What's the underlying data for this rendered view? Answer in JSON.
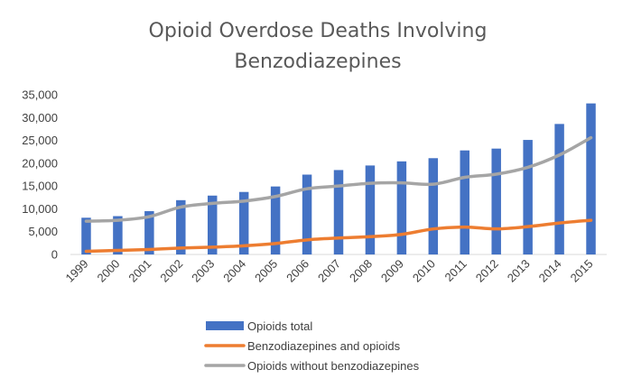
{
  "chart_data": {
    "type": "bar",
    "title": "Opioid Overdose Deaths Involving",
    "subtitle": "Benzodiazepines",
    "xlabel": "",
    "ylabel": "",
    "ylim": [
      0,
      35000
    ],
    "yticks": [
      0,
      5000,
      10000,
      15000,
      20000,
      25000,
      30000,
      35000
    ],
    "ytick_labels": [
      "0",
      "5,000",
      "10,000",
      "15,000",
      "20,000",
      "25,000",
      "30,000",
      "35,000"
    ],
    "grid": false,
    "legend_position": "bottom",
    "categories": [
      "1999",
      "2000",
      "2001",
      "2002",
      "2003",
      "2004",
      "2005",
      "2006",
      "2007",
      "2008",
      "2009",
      "2010",
      "2011",
      "2012",
      "2013",
      "2014",
      "2015"
    ],
    "series": [
      {
        "name": "Opioids total",
        "type": "bar",
        "color": "#4472C4",
        "values": [
          8050,
          8400,
          9500,
          11900,
          12900,
          13700,
          14900,
          17500,
          18500,
          19500,
          20400,
          21100,
          22800,
          23200,
          25100,
          28600,
          33100
        ]
      },
      {
        "name": "Benzodiazepines and opioids",
        "type": "line",
        "color": "#ED7D31",
        "values": [
          700,
          900,
          1100,
          1400,
          1600,
          1900,
          2400,
          3200,
          3600,
          3900,
          4400,
          5600,
          6000,
          5600,
          6100,
          6900,
          7500
        ]
      },
      {
        "name": "Opioids without benzodiazepines",
        "type": "line",
        "color": "#A5A5A5",
        "values": [
          7300,
          7500,
          8300,
          10400,
          11200,
          11700,
          12700,
          14400,
          15000,
          15600,
          15700,
          15400,
          16900,
          17600,
          19100,
          21800,
          25600
        ]
      }
    ]
  }
}
